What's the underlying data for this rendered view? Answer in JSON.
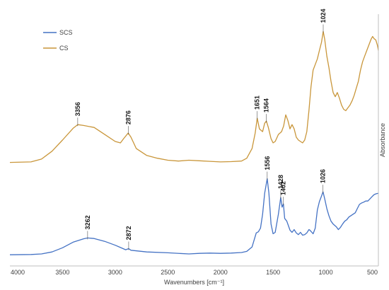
{
  "chart_data": {
    "type": "line",
    "xlabel": "Wavenumbers [cm⁻¹]",
    "ylabel": "Absorbance",
    "xlim": [
      4000,
      500
    ],
    "x_reversed": true,
    "xticks": [
      "4000",
      "3500",
      "3000",
      "2500",
      "2000",
      "1500",
      "1000",
      "500"
    ],
    "grid": false,
    "legend": "top-left",
    "series": [
      {
        "name": "SCS",
        "color": "#4472C4",
        "points": [
          [
            4000,
            0.04
          ],
          [
            3800,
            0.041
          ],
          [
            3700,
            0.043
          ],
          [
            3600,
            0.05
          ],
          [
            3500,
            0.065
          ],
          [
            3400,
            0.085
          ],
          [
            3300,
            0.097
          ],
          [
            3262,
            0.1
          ],
          [
            3200,
            0.098
          ],
          [
            3100,
            0.088
          ],
          [
            3000,
            0.074
          ],
          [
            2950,
            0.066
          ],
          [
            2900,
            0.058
          ],
          [
            2872,
            0.062
          ],
          [
            2850,
            0.056
          ],
          [
            2700,
            0.05
          ],
          [
            2500,
            0.047
          ],
          [
            2300,
            0.043
          ],
          [
            2200,
            0.045
          ],
          [
            2100,
            0.046
          ],
          [
            2000,
            0.045
          ],
          [
            1900,
            0.046
          ],
          [
            1800,
            0.048
          ],
          [
            1750,
            0.052
          ],
          [
            1700,
            0.068
          ],
          [
            1660,
            0.118
          ],
          [
            1640,
            0.122
          ],
          [
            1620,
            0.135
          ],
          [
            1600,
            0.185
          ],
          [
            1580,
            0.26
          ],
          [
            1556,
            0.312
          ],
          [
            1540,
            0.26
          ],
          [
            1520,
            0.15
          ],
          [
            1500,
            0.115
          ],
          [
            1480,
            0.12
          ],
          [
            1450,
            0.185
          ],
          [
            1428,
            0.245
          ],
          [
            1415,
            0.21
          ],
          [
            1402,
            0.222
          ],
          [
            1390,
            0.17
          ],
          [
            1370,
            0.16
          ],
          [
            1340,
            0.128
          ],
          [
            1320,
            0.12
          ],
          [
            1300,
            0.13
          ],
          [
            1280,
            0.118
          ],
          [
            1260,
            0.112
          ],
          [
            1240,
            0.12
          ],
          [
            1220,
            0.11
          ],
          [
            1200,
            0.112
          ],
          [
            1180,
            0.118
          ],
          [
            1160,
            0.13
          ],
          [
            1150,
            0.128
          ],
          [
            1120,
            0.115
          ],
          [
            1100,
            0.135
          ],
          [
            1080,
            0.2
          ],
          [
            1060,
            0.23
          ],
          [
            1040,
            0.25
          ],
          [
            1026,
            0.265
          ],
          [
            1010,
            0.24
          ],
          [
            990,
            0.205
          ],
          [
            970,
            0.18
          ],
          [
            950,
            0.16
          ],
          [
            930,
            0.15
          ],
          [
            900,
            0.14
          ],
          [
            880,
            0.13
          ],
          [
            860,
            0.138
          ],
          [
            840,
            0.15
          ],
          [
            820,
            0.16
          ],
          [
            800,
            0.165
          ],
          [
            780,
            0.175
          ],
          [
            760,
            0.18
          ],
          [
            740,
            0.185
          ],
          [
            720,
            0.19
          ],
          [
            700,
            0.205
          ],
          [
            680,
            0.22
          ],
          [
            660,
            0.225
          ],
          [
            640,
            0.228
          ],
          [
            620,
            0.232
          ],
          [
            600,
            0.232
          ],
          [
            580,
            0.24
          ],
          [
            560,
            0.248
          ],
          [
            540,
            0.255
          ],
          [
            520,
            0.258
          ],
          [
            500,
            0.26
          ]
        ]
      },
      {
        "name": "CS",
        "color": "#C9963A",
        "points": [
          [
            4000,
            0.37
          ],
          [
            3800,
            0.372
          ],
          [
            3700,
            0.382
          ],
          [
            3600,
            0.41
          ],
          [
            3500,
            0.45
          ],
          [
            3400,
            0.492
          ],
          [
            3356,
            0.505
          ],
          [
            3300,
            0.502
          ],
          [
            3200,
            0.495
          ],
          [
            3100,
            0.47
          ],
          [
            3000,
            0.445
          ],
          [
            2950,
            0.44
          ],
          [
            2920,
            0.455
          ],
          [
            2876,
            0.475
          ],
          [
            2850,
            0.46
          ],
          [
            2800,
            0.42
          ],
          [
            2700,
            0.395
          ],
          [
            2600,
            0.385
          ],
          [
            2500,
            0.378
          ],
          [
            2400,
            0.375
          ],
          [
            2300,
            0.378
          ],
          [
            2200,
            0.376
          ],
          [
            2100,
            0.374
          ],
          [
            2000,
            0.372
          ],
          [
            1900,
            0.373
          ],
          [
            1800,
            0.375
          ],
          [
            1750,
            0.385
          ],
          [
            1700,
            0.42
          ],
          [
            1670,
            0.475
          ],
          [
            1651,
            0.528
          ],
          [
            1630,
            0.49
          ],
          [
            1600,
            0.48
          ],
          [
            1580,
            0.51
          ],
          [
            1564,
            0.518
          ],
          [
            1545,
            0.495
          ],
          [
            1520,
            0.455
          ],
          [
            1500,
            0.44
          ],
          [
            1480,
            0.445
          ],
          [
            1450,
            0.47
          ],
          [
            1420,
            0.48
          ],
          [
            1400,
            0.5
          ],
          [
            1380,
            0.54
          ],
          [
            1360,
            0.52
          ],
          [
            1340,
            0.49
          ],
          [
            1320,
            0.505
          ],
          [
            1300,
            0.49
          ],
          [
            1280,
            0.46
          ],
          [
            1260,
            0.45
          ],
          [
            1240,
            0.445
          ],
          [
            1220,
            0.44
          ],
          [
            1200,
            0.45
          ],
          [
            1180,
            0.48
          ],
          [
            1160,
            0.555
          ],
          [
            1140,
            0.64
          ],
          [
            1120,
            0.7
          ],
          [
            1100,
            0.72
          ],
          [
            1080,
            0.74
          ],
          [
            1060,
            0.77
          ],
          [
            1040,
            0.8
          ],
          [
            1024,
            0.838
          ],
          [
            1010,
            0.81
          ],
          [
            990,
            0.75
          ],
          [
            970,
            0.71
          ],
          [
            950,
            0.66
          ],
          [
            930,
            0.62
          ],
          [
            910,
            0.605
          ],
          [
            890,
            0.62
          ],
          [
            870,
            0.6
          ],
          [
            850,
            0.575
          ],
          [
            830,
            0.56
          ],
          [
            810,
            0.555
          ],
          [
            790,
            0.565
          ],
          [
            770,
            0.575
          ],
          [
            750,
            0.59
          ],
          [
            730,
            0.61
          ],
          [
            710,
            0.635
          ],
          [
            690,
            0.66
          ],
          [
            670,
            0.7
          ],
          [
            650,
            0.73
          ],
          [
            630,
            0.75
          ],
          [
            610,
            0.77
          ],
          [
            590,
            0.79
          ],
          [
            570,
            0.81
          ],
          [
            555,
            0.82
          ],
          [
            540,
            0.812
          ],
          [
            525,
            0.808
          ],
          [
            510,
            0.79
          ],
          [
            500,
            0.77
          ]
        ]
      }
    ],
    "annotations": [
      {
        "series": "CS",
        "x": 3356,
        "text": "3356"
      },
      {
        "series": "CS",
        "x": 2876,
        "text": "2876"
      },
      {
        "series": "CS",
        "x": 1651,
        "text": "1651"
      },
      {
        "series": "CS",
        "x": 1564,
        "text": "1564"
      },
      {
        "series": "CS",
        "x": 1024,
        "text": "1024"
      },
      {
        "series": "SCS",
        "x": 3262,
        "text": "3262"
      },
      {
        "series": "SCS",
        "x": 2872,
        "text": "2872"
      },
      {
        "series": "SCS",
        "x": 1556,
        "text": "1556"
      },
      {
        "series": "SCS",
        "x": 1428,
        "text": "1428"
      },
      {
        "series": "SCS",
        "x": 1402,
        "text": "1402"
      },
      {
        "series": "SCS",
        "x": 1026,
        "text": "1026"
      }
    ]
  }
}
